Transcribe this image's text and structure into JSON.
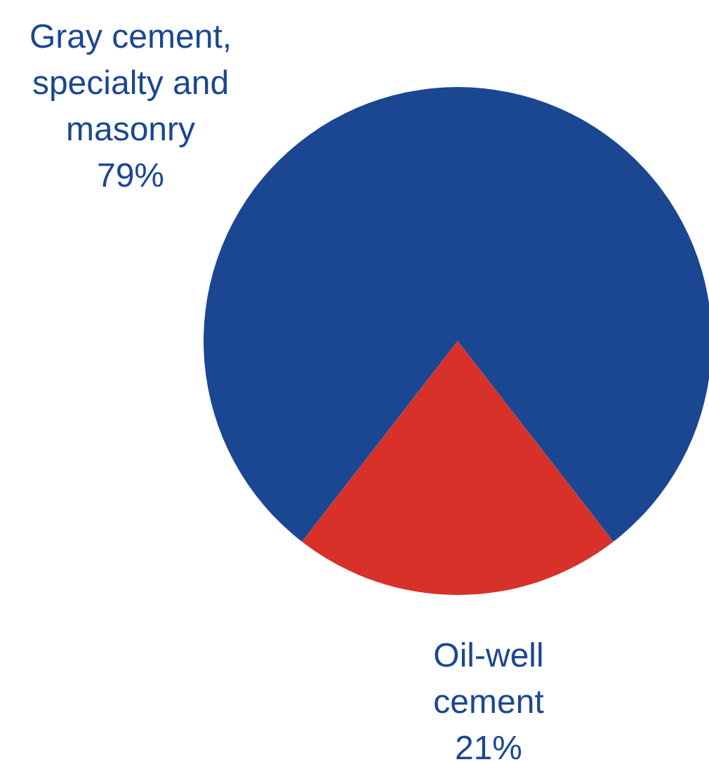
{
  "chart_data": {
    "type": "pie",
    "categories": [
      "Oil-well cement",
      "Gray cement, specialty and masonry"
    ],
    "values": [
      21,
      79
    ],
    "colors": [
      "#d7312a",
      "#1b4792"
    ],
    "value_labels": [
      "21%",
      "79%"
    ]
  }
}
